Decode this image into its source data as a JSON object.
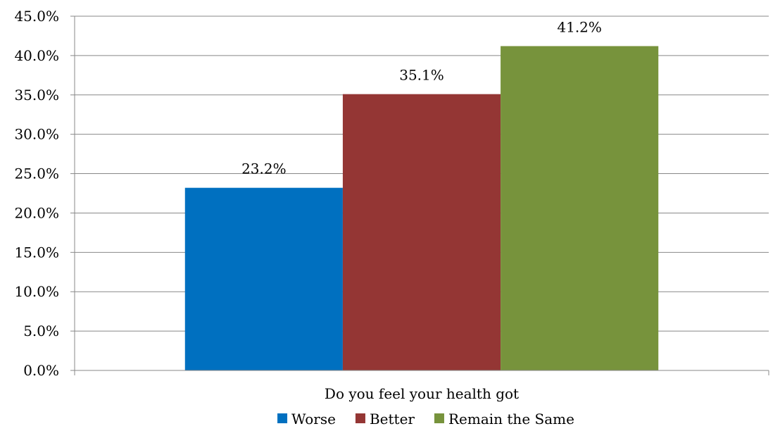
{
  "chart_data": {
    "type": "bar",
    "categories": [
      "Do you feel your health got"
    ],
    "series": [
      {
        "name": "Worse",
        "values": [
          23.2
        ],
        "label": "23.2%",
        "color": "#0070C0"
      },
      {
        "name": "Better",
        "values": [
          35.1
        ],
        "label": "35.1%",
        "color": "#943634"
      },
      {
        "name": "Remain the Same",
        "values": [
          41.2
        ],
        "label": "41.2%",
        "color": "#77933C"
      }
    ],
    "title": "",
    "xlabel": "",
    "ylabel": "",
    "ylim": [
      0,
      45
    ],
    "yticks": [
      0,
      5,
      10,
      15,
      20,
      25,
      30,
      35,
      40,
      45
    ],
    "ytick_labels": [
      "0.0%",
      "5.0%",
      "10.0%",
      "15.0%",
      "20.0%",
      "25.0%",
      "30.0%",
      "35.0%",
      "40.0%",
      "45.0%"
    ],
    "grid": true,
    "legend": "bottom"
  }
}
